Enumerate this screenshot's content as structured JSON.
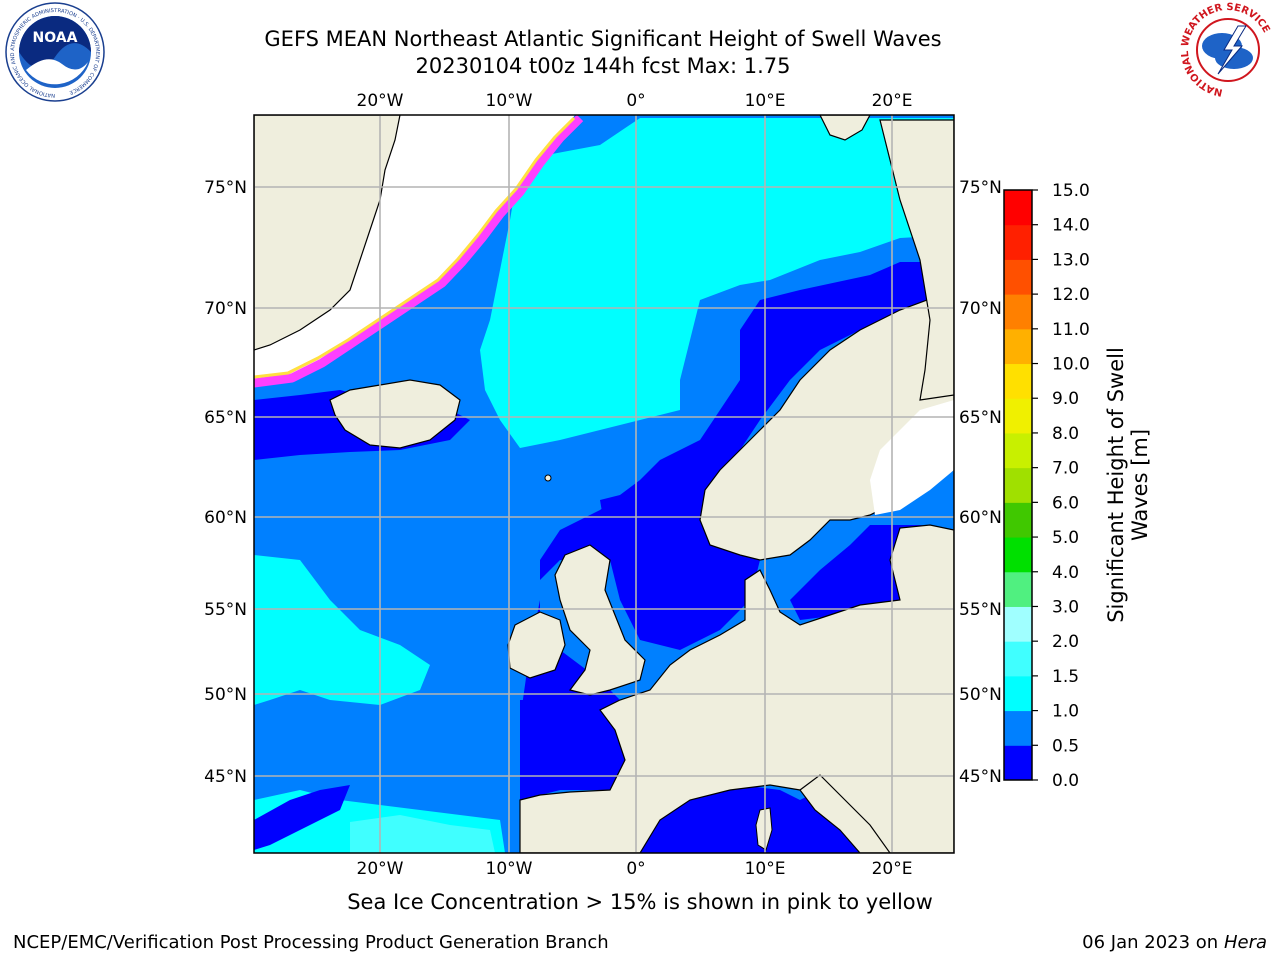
{
  "title_line1": "GEFS MEAN Northeast Atlantic Significant Height of Swell Waves",
  "title_line2": "20230104 t00z 144h fcst   Max: 1.75",
  "lon_labels": [
    "20°W",
    "10°W",
    "0°",
    "10°E",
    "20°E"
  ],
  "lat_labels": [
    "75°N",
    "70°N",
    "65°N",
    "60°N",
    "55°N",
    "50°N",
    "45°N"
  ],
  "colorbar": {
    "label": "Significant Height of Swell Waves [m]",
    "label_line1": "Significant Height of Swell",
    "label_line2": "Waves [m]",
    "ticks": [
      "0.0",
      "0.5",
      "1.0",
      "1.5",
      "2.0",
      "3.0",
      "4.0",
      "5.0",
      "6.0",
      "7.0",
      "8.0",
      "9.0",
      "10.0",
      "11.0",
      "12.0",
      "13.0",
      "14.0",
      "15.0"
    ],
    "colors": [
      "#0000ff",
      "#0080ff",
      "#00ffff",
      "#40ffff",
      "#a0ffff",
      "#50f080",
      "#00e000",
      "#40c800",
      "#a0e000",
      "#c8f000",
      "#f0f000",
      "#ffe000",
      "#ffb000",
      "#ff8000",
      "#ff5000",
      "#ff2000",
      "#ff0000"
    ]
  },
  "sea_ice_note": "Sea Ice Concentration > 15% is shown in pink to yellow",
  "footer_left": "NCEP/EMC/Verification Post Processing Product Generation Branch",
  "footer_date": "06 Jan 2023 on ",
  "footer_host": "Hera",
  "logos": {
    "noaa_text": "NOAA",
    "noaa_ring": "NATIONAL OCEANIC AND ATMOSPHERIC ADMINISTRATION · U.S. DEPARTMENT OF COMMERCE",
    "nws_ring": "NATIONAL WEATHER SERVICE"
  },
  "colors": {
    "land": "#efeedd",
    "ice_pink": "#ff40ff",
    "ice_yellow": "#ffe040",
    "grid": "#b4b4b4"
  }
}
